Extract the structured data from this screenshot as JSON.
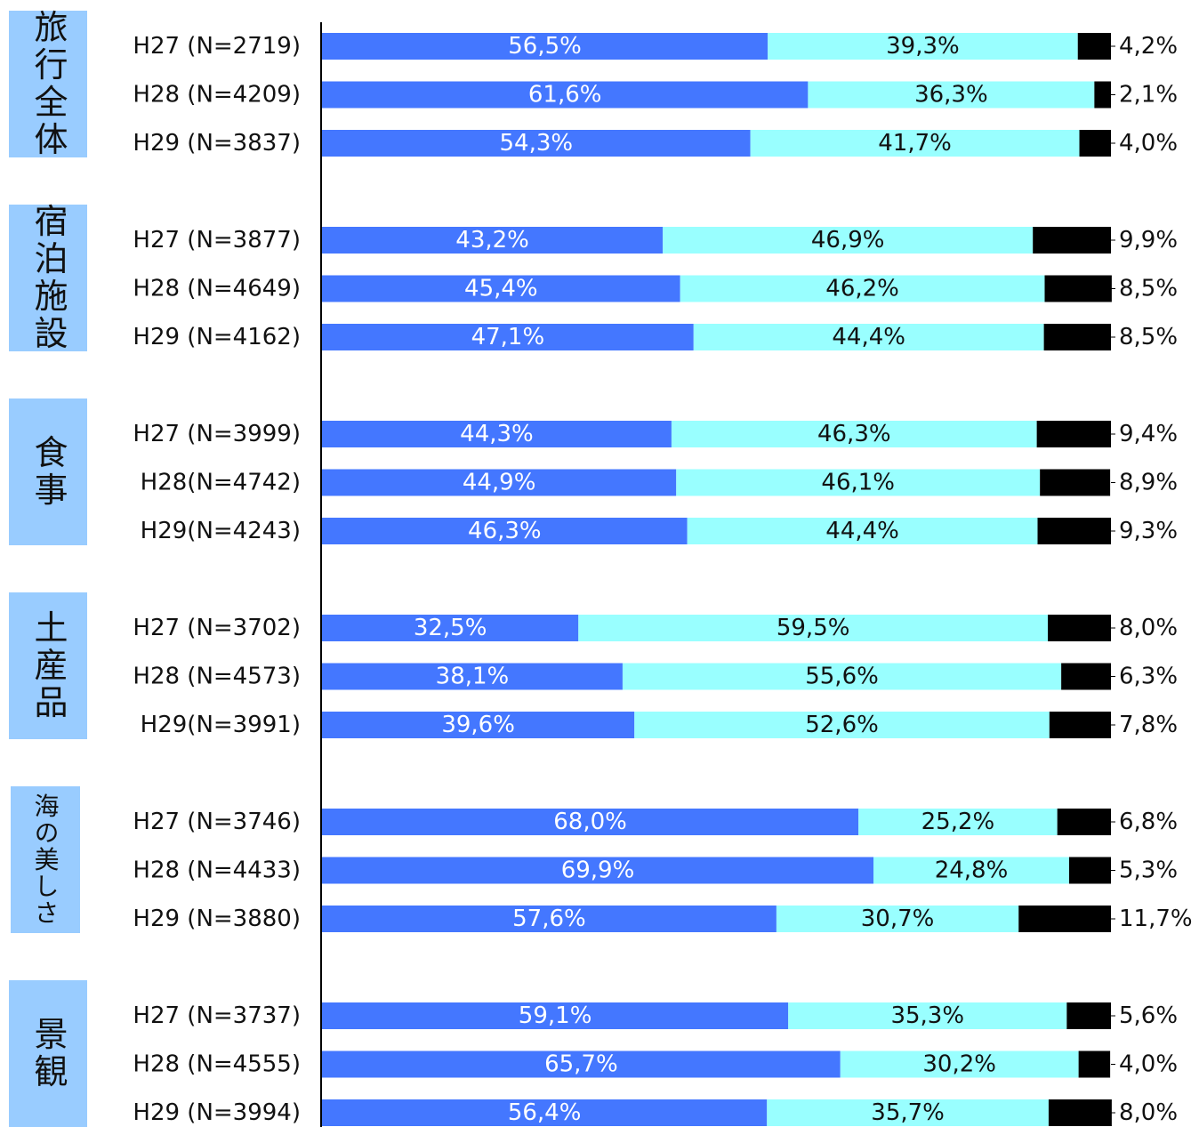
{
  "chart_data": {
    "type": "bar",
    "orientation": "horizontal",
    "stacked": true,
    "groups": [
      "旅行全体",
      "宿泊施設",
      "食事",
      "土産品",
      "海の美しさ",
      "景観"
    ],
    "categories": [
      "H27 (N=2719)",
      "H28 (N=4209)",
      "H29 (N=3837)",
      "H27 (N=3877)",
      "H28 (N=4649)",
      "H29 (N=4162)",
      "H27 (N=3999)",
      "H28(N=4742)",
      "H29(N=4243)",
      "H27 (N=3702)",
      "H28 (N=4573)",
      "H29(N=3991)",
      "H27 (N=3746)",
      "H28 (N=4433)",
      "H29 (N=3880)",
      "H27 (N=3737)",
      "H28 (N=4555)",
      "H29 (N=3994)"
    ],
    "xlim": [
      0,
      100
    ],
    "series": [
      {
        "color": "#4477ff",
        "label_color": "#ffffff",
        "values": [
          56.5,
          61.6,
          54.3,
          43.2,
          45.4,
          47.1,
          44.3,
          44.9,
          46.3,
          32.5,
          38.1,
          39.6,
          68.0,
          69.9,
          57.6,
          59.1,
          65.7,
          56.4
        ],
        "value_labels": [
          "56,5%",
          "61,6%",
          "54,3%",
          "43,2%",
          "45,4%",
          "47,1%",
          "44,3%",
          "44,9%",
          "46,3%",
          "32,5%",
          "38,1%",
          "39,6%",
          "68,0%",
          "69,9%",
          "57,6%",
          "59,1%",
          "65,7%",
          "56,4%"
        ]
      },
      {
        "color": "#99ffff",
        "label_color": "#111111",
        "values": [
          39.3,
          36.3,
          41.7,
          46.9,
          46.2,
          44.4,
          46.3,
          46.1,
          44.4,
          59.5,
          55.6,
          52.6,
          25.2,
          24.8,
          30.7,
          35.3,
          30.2,
          35.7
        ],
        "value_labels": [
          "39,3%",
          "36,3%",
          "41,7%",
          "46,9%",
          "46,2%",
          "44,4%",
          "46,3%",
          "46,1%",
          "44,4%",
          "59,5%",
          "55,6%",
          "52,6%",
          "25,2%",
          "24,8%",
          "30,7%",
          "35,3%",
          "30,2%",
          "35,7%"
        ]
      },
      {
        "color": "#000000",
        "label_color": "#111111",
        "label_outside": true,
        "values": [
          4.2,
          2.1,
          4.0,
          9.9,
          8.5,
          8.5,
          9.4,
          8.9,
          9.3,
          8.0,
          6.3,
          7.8,
          6.8,
          5.3,
          11.7,
          5.6,
          4.0,
          8.0
        ],
        "value_labels": [
          "4,2%",
          "2,1%",
          "4,0%",
          "9,9%",
          "8,5%",
          "8,5%",
          "9,4%",
          "8,9%",
          "9,3%",
          "8,0%",
          "6,3%",
          "7,8%",
          "6,8%",
          "5,3%",
          "11,7%",
          "5,6%",
          "4,0%",
          "8,0%"
        ]
      }
    ],
    "group_box_color": "#99ccff"
  }
}
